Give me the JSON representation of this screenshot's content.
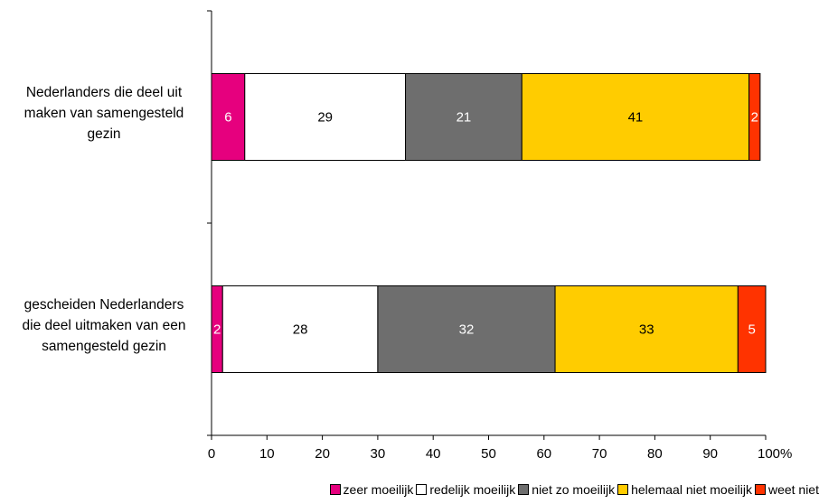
{
  "chart_data": {
    "type": "bar",
    "orientation": "horizontal",
    "stacked": true,
    "categories": [
      "Nederlanders die deel uit maken van samengesteld gezin",
      "gescheiden Nederlanders die deel uitmaken van een samengesteld gezin"
    ],
    "category_lines": [
      [
        "Nederlanders die deel uit",
        "maken van samengesteld",
        "gezin"
      ],
      [
        "gescheiden Nederlanders",
        "die deel uitmaken van een",
        "samengesteld gezin"
      ]
    ],
    "series": [
      {
        "name": "zeer moeilijk",
        "color": "#e6007e",
        "label_color": "#ffffff",
        "values": [
          6,
          2
        ]
      },
      {
        "name": "redelijk moeilijk",
        "color": "#ffffff",
        "label_color": "#000000",
        "values": [
          29,
          28
        ]
      },
      {
        "name": "niet zo moeilijk",
        "color": "#6e6e6e",
        "label_color": "#ffffff",
        "values": [
          21,
          32
        ]
      },
      {
        "name": "helemaal niet moeilijk",
        "color": "#ffcc00",
        "label_color": "#000000",
        "values": [
          41,
          33
        ]
      },
      {
        "name": "weet niet",
        "color": "#ff3300",
        "label_color": "#ffffff",
        "values": [
          2,
          5
        ]
      }
    ],
    "xlim": [
      0,
      100
    ],
    "xticks": [
      "0",
      "10",
      "20",
      "30",
      "40",
      "50",
      "60",
      "70",
      "80",
      "90",
      "100%"
    ],
    "xlabel": "",
    "ylabel": "",
    "title": "",
    "grid": false,
    "legend_position": "bottom"
  }
}
